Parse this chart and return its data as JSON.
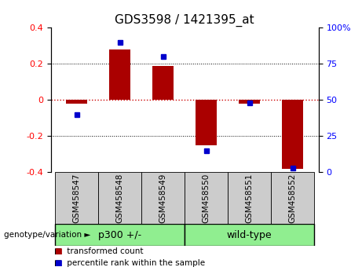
{
  "title": "GDS3598 / 1421395_at",
  "categories": [
    "GSM458547",
    "GSM458548",
    "GSM458549",
    "GSM458550",
    "GSM458551",
    "GSM458552"
  ],
  "red_bars": [
    -0.02,
    0.28,
    0.19,
    -0.25,
    -0.02,
    -0.38
  ],
  "blue_dots": [
    40,
    90,
    80,
    15,
    48,
    3
  ],
  "ylim_left": [
    -0.4,
    0.4
  ],
  "ylim_right": [
    0,
    100
  ],
  "yticks_left": [
    -0.4,
    -0.2,
    0.0,
    0.2,
    0.4
  ],
  "yticks_right": [
    0,
    25,
    50,
    75,
    100
  ],
  "group_label": "genotype/variation",
  "bar_color": "#aa0000",
  "dot_color": "#0000cc",
  "zero_line_color": "#cc0000",
  "grid_color": "#000000",
  "bg_color": "#ffffff",
  "sample_box_color": "#cccccc",
  "group_color": "#90ee90",
  "legend_red_label": "transformed count",
  "legend_blue_label": "percentile rank within the sample",
  "title_fontsize": 11,
  "tick_fontsize": 8,
  "label_fontsize": 7.5,
  "group_fontsize": 9
}
